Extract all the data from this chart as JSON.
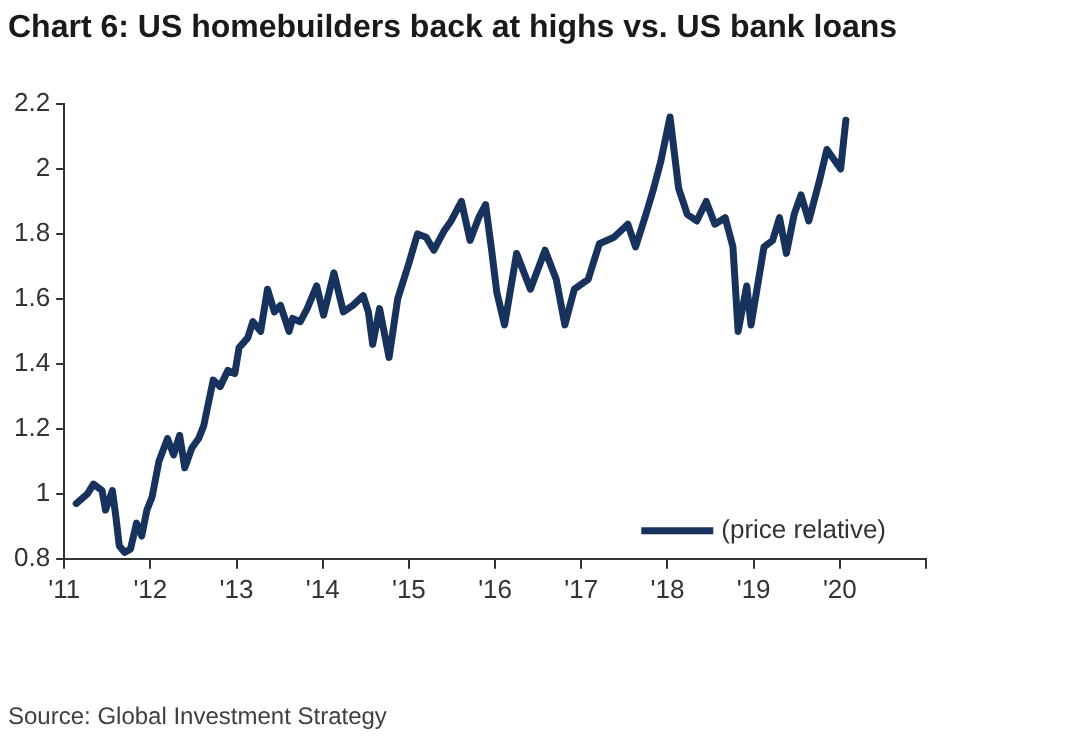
{
  "chart_data": {
    "type": "line",
    "title": "Chart 6: US homebuilders back at highs vs. US bank loans",
    "annotations": [
      "Source: Global Investment Strategy"
    ],
    "xlim": [
      2011,
      2021
    ],
    "xticks": [
      {
        "value": 2011,
        "label": "'11"
      },
      {
        "value": 2012,
        "label": "'12"
      },
      {
        "value": 2013,
        "label": "'13"
      },
      {
        "value": 2014,
        "label": "'14"
      },
      {
        "value": 2015,
        "label": "'15"
      },
      {
        "value": 2016,
        "label": "'16"
      },
      {
        "value": 2017,
        "label": "'17"
      },
      {
        "value": 2018,
        "label": "'18"
      },
      {
        "value": 2019,
        "label": "'19"
      },
      {
        "value": 2020,
        "label": "'20"
      },
      {
        "value": 2021,
        "label": null
      }
    ],
    "ylim": [
      0.8,
      2.2
    ],
    "yticks": [
      0.8,
      1,
      1.2,
      1.4,
      1.6,
      1.8,
      2,
      2.2
    ],
    "grid": false,
    "legend": "bottom right",
    "marker": "none",
    "line_style": "solid",
    "series": [
      {
        "name": "(price relative)",
        "color": "#17325c",
        "x": [
          2011.14,
          2011.27,
          2011.34,
          2011.44,
          2011.48,
          2011.56,
          2011.6,
          2011.64,
          2011.7,
          2011.77,
          2011.84,
          2011.9,
          2011.96,
          2012.02,
          2012.1,
          2012.2,
          2012.27,
          2012.34,
          2012.4,
          2012.48,
          2012.56,
          2012.62,
          2012.69,
          2012.73,
          2012.81,
          2012.9,
          2012.98,
          2013.03,
          2013.13,
          2013.19,
          2013.28,
          2013.36,
          2013.44,
          2013.51,
          2013.61,
          2013.65,
          2013.74,
          2013.82,
          2013.93,
          2014.01,
          2014.13,
          2014.24,
          2014.35,
          2014.47,
          2014.53,
          2014.58,
          2014.66,
          2014.77,
          2014.87,
          2015.0,
          2015.1,
          2015.2,
          2015.29,
          2015.41,
          2015.49,
          2015.61,
          2015.71,
          2015.81,
          2015.89,
          2015.96,
          2016.02,
          2016.11,
          2016.25,
          2016.41,
          2016.58,
          2016.71,
          2016.81,
          2016.92,
          2017.08,
          2017.21,
          2017.38,
          2017.54,
          2017.63,
          2017.75,
          2017.84,
          2017.92,
          2018.03,
          2018.13,
          2018.23,
          2018.34,
          2018.45,
          2018.55,
          2018.67,
          2018.76,
          2018.82,
          2018.92,
          2018.97,
          2019.12,
          2019.22,
          2019.3,
          2019.38,
          2019.47,
          2019.55,
          2019.64,
          2019.76,
          2019.85,
          2019.93,
          2020.01,
          2020.07
        ],
        "values": [
          0.97,
          1.0,
          1.03,
          1.01,
          0.95,
          1.01,
          0.93,
          0.84,
          0.82,
          0.83,
          0.91,
          0.87,
          0.95,
          0.99,
          1.1,
          1.17,
          1.12,
          1.18,
          1.08,
          1.14,
          1.17,
          1.21,
          1.3,
          1.35,
          1.33,
          1.38,
          1.37,
          1.45,
          1.48,
          1.53,
          1.5,
          1.63,
          1.56,
          1.58,
          1.5,
          1.54,
          1.53,
          1.57,
          1.64,
          1.55,
          1.68,
          1.56,
          1.58,
          1.61,
          1.56,
          1.46,
          1.57,
          1.42,
          1.6,
          1.71,
          1.8,
          1.79,
          1.75,
          1.81,
          1.84,
          1.9,
          1.78,
          1.85,
          1.89,
          1.75,
          1.62,
          1.52,
          1.74,
          1.63,
          1.75,
          1.66,
          1.52,
          1.63,
          1.66,
          1.77,
          1.79,
          1.83,
          1.76,
          1.86,
          1.94,
          2.02,
          2.16,
          1.94,
          1.86,
          1.84,
          1.9,
          1.83,
          1.85,
          1.76,
          1.5,
          1.64,
          1.52,
          1.76,
          1.78,
          1.85,
          1.74,
          1.86,
          1.92,
          1.84,
          1.96,
          2.06,
          2.03,
          2.0,
          2.15
        ]
      }
    ]
  }
}
